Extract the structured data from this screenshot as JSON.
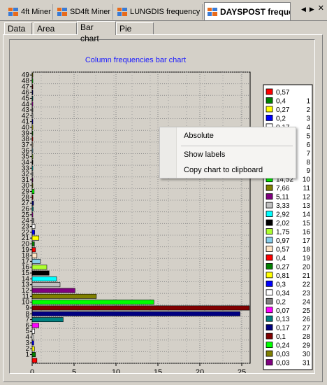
{
  "doc_tabs": [
    {
      "label": "4ft Miner",
      "active": false
    },
    {
      "label": "SD4ft Miner",
      "active": false
    },
    {
      "label": "LUNGDIS frequency",
      "active": false
    },
    {
      "label": "DAYSPOST freque",
      "active": true
    }
  ],
  "inner_tabs": [
    {
      "label": "Data",
      "active": false
    },
    {
      "label": "Area chart",
      "active": false
    },
    {
      "label": "Bar chart",
      "active": true
    },
    {
      "label": "Pie chart",
      "active": false
    }
  ],
  "context_menu": {
    "items": [
      "Absolute",
      "Show labels",
      "Copy chart to clipboard"
    ]
  },
  "chart_data": {
    "type": "bar",
    "orientation": "horizontal",
    "title": "Column frequencies bar chart",
    "xlabel": "",
    "ylabel": "",
    "xlim": [
      0,
      26
    ],
    "x_ticks": [
      0,
      5,
      10,
      15,
      20,
      25
    ],
    "y_tick_labels": [
      "1",
      "2",
      "3",
      "4",
      "5",
      "6",
      "7",
      "8",
      "9",
      "10",
      "11",
      "12",
      "13",
      "14",
      "15",
      "16",
      "17",
      "18",
      "19",
      "20",
      "21",
      "22",
      "23",
      "24",
      "25",
      "26",
      "27",
      "28",
      "29",
      "30",
      "31",
      "32",
      "33",
      "34",
      "35",
      "36",
      "37",
      "38",
      "39",
      "40",
      "41",
      "42",
      "43",
      "44",
      "45",
      "46",
      "47",
      "48",
      "49"
    ],
    "grid": true,
    "legend_placement": "right",
    "categories": [
      0,
      1,
      2,
      3,
      4,
      5,
      6,
      7,
      8,
      9,
      10,
      11,
      12,
      13,
      14,
      15,
      16,
      17,
      18,
      19,
      20,
      21,
      22,
      23,
      24,
      25,
      26,
      27,
      28,
      29,
      30,
      31,
      32,
      33,
      34,
      35,
      36,
      37,
      38,
      39,
      40,
      41,
      42,
      43,
      44,
      45,
      46,
      47,
      48,
      49
    ],
    "values": [
      0.57,
      0.4,
      0.27,
      0.2,
      0.17,
      0.3,
      0.8,
      3.7,
      24.8,
      25.9,
      14.52,
      7.66,
      5.11,
      3.33,
      2.92,
      2.02,
      1.75,
      0.97,
      0.57,
      0.4,
      0.27,
      0.81,
      0.3,
      0.34,
      0.2,
      0.07,
      0.13,
      0.17,
      0.1,
      0.24,
      0.03,
      0.03,
      0.03,
      0.03,
      0.03,
      0.03,
      0.03,
      0.03,
      0.03,
      0.03,
      0.03,
      0.03,
      0.03,
      0.03,
      0.03,
      0.03,
      0.03,
      0.03,
      0.03,
      0.03
    ],
    "colors": [
      "#ff0000",
      "#008000",
      "#ffff00",
      "#0000ff",
      "#ffffff",
      "#ffffff",
      "#ff00ff",
      "#008080",
      "#000080",
      "#800000",
      "#00ff00",
      "#808000",
      "#800080",
      "#c0c0c0",
      "#00ffff",
      "#000000",
      "#adff2f",
      "#87ceeb",
      "#ffe4c4",
      "#ff0000",
      "#008000",
      "#ffff00",
      "#0000ff",
      "#ffffff",
      "#808080",
      "#ff00ff",
      "#008080",
      "#000080",
      "#800000",
      "#00ff00",
      "#808000",
      "#800080",
      "#c0c0c0",
      "#00ffff",
      "#000000",
      "#adff2f",
      "#87ceeb",
      "#ffe4c4",
      "#ff0000",
      "#008000",
      "#ffff00",
      "#0000ff",
      "#ffffff",
      "#808080",
      "#ff00ff",
      "#008080",
      "#000080",
      "#800000",
      "#00ff00",
      "#808000"
    ],
    "legend": [
      {
        "value": "0,57",
        "label": "",
        "color": "#ff0000"
      },
      {
        "value": "0,4",
        "label": "1",
        "color": "#008000"
      },
      {
        "value": "0,27",
        "label": "2",
        "color": "#ffff00"
      },
      {
        "value": "0,2",
        "label": "3",
        "color": "#0000ff"
      },
      {
        "value": "0,17",
        "label": "4",
        "color": "#ffffff"
      },
      {
        "value": "",
        "label": "5",
        "color": "#ffffff"
      },
      {
        "value": "",
        "label": "6",
        "color": "#ff00ff"
      },
      {
        "value": "",
        "label": "7",
        "color": "#008080"
      },
      {
        "value": "",
        "label": "8",
        "color": "#000080"
      },
      {
        "value": "",
        "label": "9",
        "color": "#800000"
      },
      {
        "value": "14,52",
        "label": "10",
        "color": "#00ff00"
      },
      {
        "value": "7,66",
        "label": "11",
        "color": "#808000"
      },
      {
        "value": "5,11",
        "label": "12",
        "color": "#800080"
      },
      {
        "value": "3,33",
        "label": "13",
        "color": "#c0c0c0"
      },
      {
        "value": "2,92",
        "label": "14",
        "color": "#00ffff"
      },
      {
        "value": "2,02",
        "label": "15",
        "color": "#000000"
      },
      {
        "value": "1,75",
        "label": "16",
        "color": "#adff2f"
      },
      {
        "value": "0,97",
        "label": "17",
        "color": "#87ceeb"
      },
      {
        "value": "0,57",
        "label": "18",
        "color": "#ffe4c4"
      },
      {
        "value": "0,4",
        "label": "19",
        "color": "#ff0000"
      },
      {
        "value": "0,27",
        "label": "20",
        "color": "#008000"
      },
      {
        "value": "0,81",
        "label": "21",
        "color": "#ffff00"
      },
      {
        "value": "0,3",
        "label": "22",
        "color": "#0000ff"
      },
      {
        "value": "0,34",
        "label": "23",
        "color": "#ffffff"
      },
      {
        "value": "0,2",
        "label": "24",
        "color": "#808080"
      },
      {
        "value": "0,07",
        "label": "25",
        "color": "#ff00ff"
      },
      {
        "value": "0,13",
        "label": "26",
        "color": "#008080"
      },
      {
        "value": "0,17",
        "label": "27",
        "color": "#000080"
      },
      {
        "value": "0,1",
        "label": "28",
        "color": "#800000"
      },
      {
        "value": "0,24",
        "label": "29",
        "color": "#00ff00"
      },
      {
        "value": "0,03",
        "label": "30",
        "color": "#808000"
      },
      {
        "value": "0,03",
        "label": "31",
        "color": "#800080"
      }
    ]
  }
}
